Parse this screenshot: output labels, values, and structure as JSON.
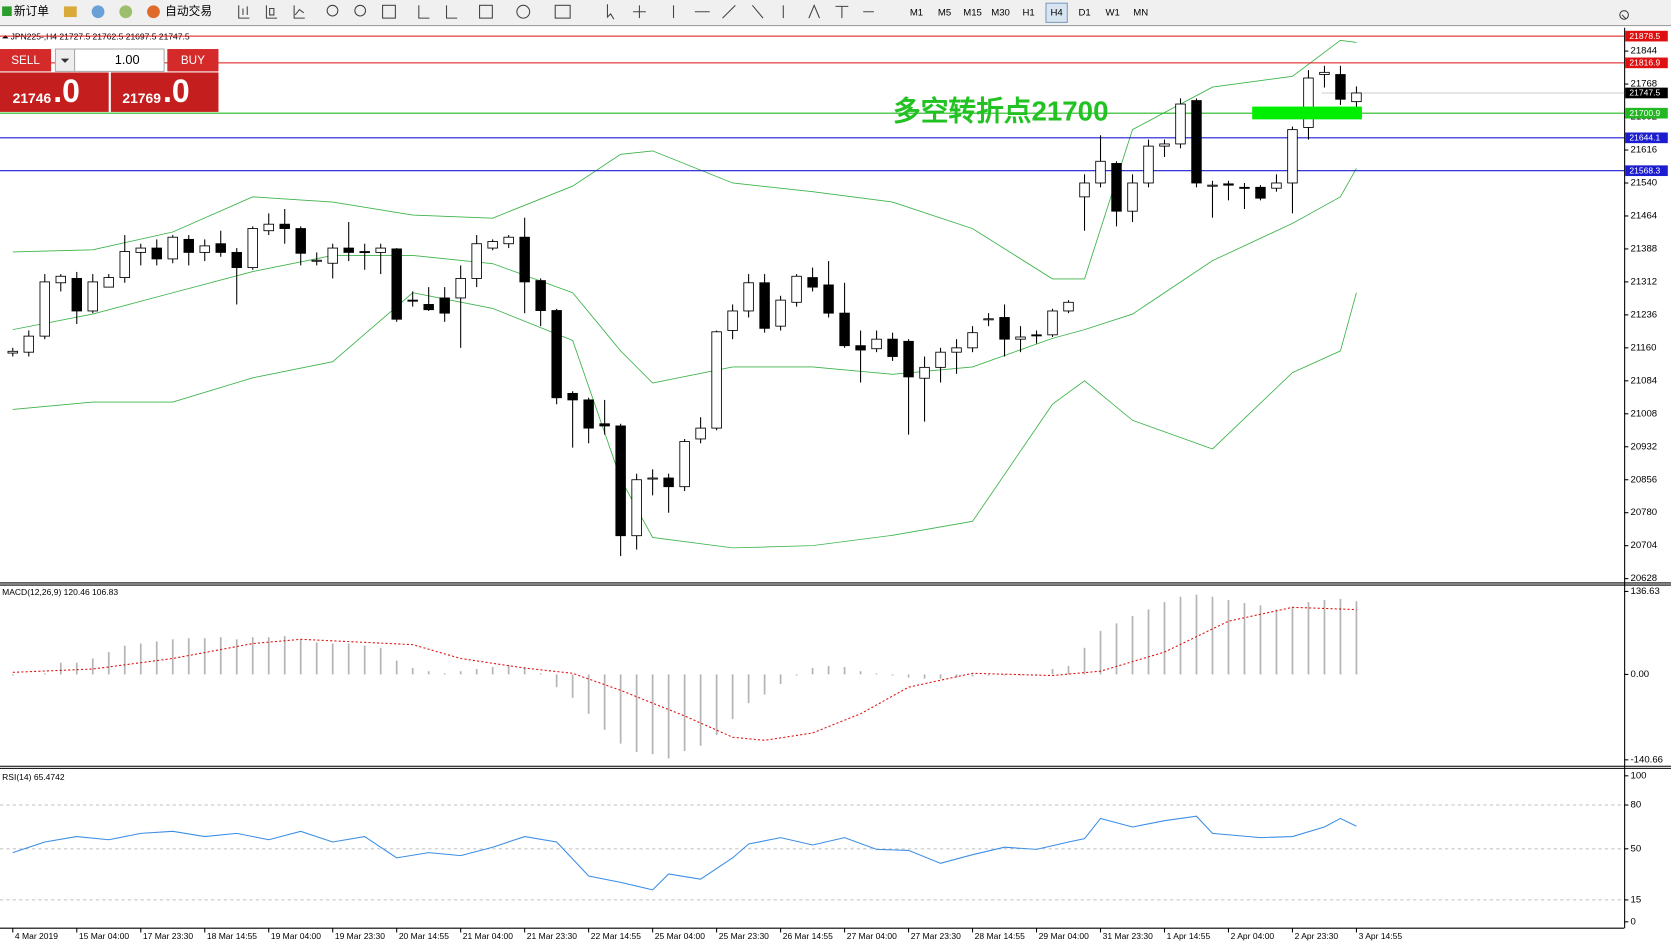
{
  "toolbar": {
    "new_order": "新订单",
    "auto_trading": "自动交易",
    "timeframes": [
      "M1",
      "M5",
      "M15",
      "M30",
      "H1",
      "H4",
      "D1",
      "W1",
      "MN"
    ],
    "active": "H4"
  },
  "trade_panel": {
    "sell": "SELL",
    "buy": "BUY",
    "lots": "1.00",
    "bid_main": "21746",
    "bid_frac": ".0",
    "ask_main": "21769",
    "ask_frac": ".0"
  },
  "chart_data": [
    {
      "type": "candlestick",
      "title": "JPN225-,H4  21727.5 21762.5 21697.5 21747.5",
      "annotation": "多空转折点21700",
      "categories": [
        "4 Mar 2019",
        null,
        null,
        null,
        "15 Mar 04:00",
        null,
        null,
        null,
        "17 Mar 23:30",
        null,
        null,
        null,
        "18 Mar 14:55",
        null,
        null,
        null,
        "19 Mar 04:00",
        null,
        null,
        null,
        "19 Mar 23:30",
        null,
        null,
        null,
        "20 Mar 14:55",
        null,
        null,
        null,
        "21 Mar 04:00",
        null,
        null,
        null,
        "21 Mar 23:30",
        null,
        null,
        null,
        "22 Mar 14:55",
        null,
        null,
        null,
        "25 Mar 04:00",
        null,
        null,
        null,
        "25 Mar 23:30",
        null,
        null,
        null,
        "26 Mar 14:55",
        null,
        null,
        null,
        "27 Mar 04:00",
        null,
        null,
        null,
        "27 Mar 23:30",
        null,
        null,
        null,
        "28 Mar 14:55",
        null,
        null,
        null,
        "29 Mar 04:00",
        null,
        null,
        null,
        "31 Mar 23:30",
        null,
        null,
        null,
        "1 Apr 14:55",
        null,
        null,
        null,
        "2 Apr 04:00",
        null,
        null,
        null,
        "2 Apr 23:30",
        null,
        null,
        null,
        "3 Apr 14:55"
      ],
      "open": [
        21148,
        21150,
        21187,
        21310,
        21320,
        21245,
        21300,
        21322,
        21380,
        21390,
        21365,
        21410,
        21380,
        21400,
        21380,
        21345,
        21430,
        21445,
        21435,
        21360,
        21355,
        21390,
        21382,
        21380,
        21388,
        21270,
        21260,
        21275,
        21275,
        21320,
        21390,
        21400,
        21415,
        21315,
        21246,
        21055,
        21040,
        20985,
        20980,
        20727,
        20858,
        20860,
        20840,
        20950,
        20975,
        21200,
        21245,
        21310,
        21210,
        21265,
        21322,
        21305,
        21240,
        21165,
        21158,
        21180,
        21175,
        21090,
        21115,
        21150,
        21160,
        21225,
        21230,
        21180,
        21190,
        21190,
        21245,
        21508,
        21540,
        21585,
        21475,
        21540,
        21625,
        21630,
        21730,
        21535,
        21538,
        21530,
        21530,
        21528,
        21540,
        21668,
        21790,
        21790,
        21727.5
      ],
      "high": [
        21160,
        21200,
        21330,
        21330,
        21335,
        21330,
        21330,
        21420,
        21400,
        21410,
        21420,
        21420,
        21410,
        21430,
        21390,
        21440,
        21470,
        21480,
        21440,
        21380,
        21400,
        21450,
        21400,
        21400,
        21390,
        21290,
        21300,
        21300,
        21350,
        21420,
        21410,
        21420,
        21460,
        21320,
        21250,
        21060,
        21045,
        21040,
        20985,
        20870,
        20880,
        20870,
        20950,
        21000,
        21200,
        21260,
        21330,
        21330,
        21280,
        21330,
        21345,
        21360,
        21310,
        21200,
        21200,
        21195,
        21180,
        21140,
        21160,
        21180,
        21210,
        21240,
        21260,
        21210,
        21200,
        21250,
        21270,
        21560,
        21650,
        21590,
        21560,
        21640,
        21640,
        21735,
        21735,
        21545,
        21545,
        21540,
        21535,
        21560,
        21670,
        21800,
        21810,
        21810,
        21762.5
      ],
      "low": [
        21140,
        21140,
        21180,
        21290,
        21215,
        21240,
        21300,
        21310,
        21350,
        21350,
        21355,
        21350,
        21360,
        21370,
        21260,
        21340,
        21420,
        21400,
        21350,
        21350,
        21320,
        21360,
        21340,
        21330,
        21220,
        21255,
        21245,
        21220,
        21160,
        21300,
        21385,
        21390,
        21240,
        21210,
        21030,
        20930,
        20940,
        20960,
        20680,
        20695,
        20820,
        20780,
        20830,
        20940,
        20970,
        21180,
        21230,
        21195,
        21200,
        21255,
        21290,
        21230,
        21160,
        21080,
        21150,
        21130,
        20960,
        20990,
        21080,
        21100,
        21150,
        21210,
        21140,
        21150,
        21170,
        21185,
        21240,
        21430,
        21530,
        21440,
        21450,
        21530,
        21600,
        21620,
        21530,
        21460,
        21500,
        21480,
        21500,
        21520,
        21470,
        21640,
        21760,
        21720,
        21697.5
      ],
      "close": [
        21152,
        21187,
        21312,
        21325,
        21245,
        21312,
        21322,
        21382,
        21390,
        21365,
        21415,
        21380,
        21395,
        21380,
        21345,
        21435,
        21445,
        21435,
        21378,
        21362,
        21390,
        21380,
        21380,
        21390,
        21226,
        21268,
        21248,
        21240,
        21320,
        21400,
        21405,
        21415,
        21312,
        21246,
        21045,
        21040,
        20975,
        20980,
        20727,
        20856,
        20860,
        20840,
        20944,
        20975,
        21197,
        21245,
        21310,
        21205,
        21270,
        21325,
        21300,
        21240,
        21165,
        21155,
        21180,
        21140,
        21093,
        21115,
        21150,
        21160,
        21195,
        21227,
        21180,
        21185,
        21188,
        21245,
        21265,
        21540,
        21590,
        21475,
        21540,
        21625,
        21630,
        21722,
        21540,
        21535,
        21535,
        21528,
        21505,
        21540,
        21663,
        21782,
        21795,
        21733,
        21747.5
      ],
      "up_color": "#ffffff",
      "down_color": "#000000",
      "bands": [
        {
          "color": "#3cb44b",
          "x": [
            0,
            5,
            10,
            15,
            20,
            25,
            30,
            35,
            38,
            40,
            45,
            50,
            55,
            60,
            65,
            67,
            70,
            75,
            80,
            83,
            84
          ],
          "values": [
            21381,
            21386,
            21427,
            21508,
            21496,
            21466,
            21459,
            21533,
            21606,
            21614,
            21540,
            21520,
            21496,
            21435,
            21319,
            21319,
            21663,
            21761,
            21786,
            21869,
            21864
          ]
        },
        {
          "color": "#3cb44b",
          "x": [
            0,
            5,
            10,
            15,
            20,
            25,
            30,
            35,
            38,
            40,
            45,
            50,
            55,
            60,
            65,
            67,
            70,
            75,
            80,
            83,
            84
          ],
          "values": [
            21202,
            21238,
            21287,
            21336,
            21373,
            21373,
            21354,
            21287,
            21153,
            21079,
            21116,
            21116,
            21099,
            21116,
            21182,
            21202,
            21238,
            21361,
            21447,
            21508,
            21574
          ]
        },
        {
          "color": "#3cb44b",
          "x": [
            0,
            5,
            10,
            15,
            20,
            25,
            30,
            35,
            38,
            40,
            45,
            50,
            55,
            60,
            65,
            67,
            70,
            75,
            80,
            83,
            84
          ],
          "values": [
            21018,
            21035,
            21035,
            21091,
            21128,
            21287,
            21251,
            21177,
            20858,
            20723,
            20699,
            20704,
            20728,
            20760,
            21030,
            21084,
            20993,
            20927,
            21103,
            21153,
            21287
          ]
        }
      ],
      "levels": [
        {
          "value": 21878.5,
          "color": "#e01010"
        },
        {
          "value": 21816.9,
          "color": "#e01010"
        },
        {
          "value": 21700.9,
          "color": "#22b822"
        },
        {
          "value": 21644.1,
          "color": "#1c1cd0"
        },
        {
          "value": 21568.3,
          "color": "#1c1cd0"
        }
      ],
      "last": 21747.5,
      "ylim": [
        20620.6,
        21893
      ],
      "yticks": [
        21844,
        21768,
        21692,
        21616,
        21540,
        21464,
        21388,
        21312,
        21236,
        21160,
        21084,
        21008,
        20932,
        20856,
        20780,
        20704,
        20628
      ]
    },
    {
      "type": "macd",
      "title": "MACD(12,26,9) 120.46 106.83",
      "color": "#b4b4b4",
      "values": [
        -2,
        0,
        2,
        19.3,
        19.3,
        26.3,
        36.8,
        47.3,
        50.8,
        54.3,
        57.8,
        59.6,
        59.6,
        61.3,
        57.8,
        61.3,
        61.3,
        63.1,
        57.8,
        52.6,
        50.8,
        50.8,
        47.3,
        43.8,
        22.8,
        10.5,
        5.3,
        1.8,
        5.3,
        8.8,
        12.3,
        15.8,
        12.3,
        1.8,
        -21,
        -38.5,
        -64.8,
        -91.1,
        -113.9,
        -127.9,
        -131.4,
        -138.4,
        -126.1,
        -117.4,
        -99.9,
        -73.6,
        -47.3,
        -33.3,
        -15.8,
        -1.8,
        10.5,
        14,
        12.3,
        5.3,
        1.8,
        -1.8,
        -5.3,
        -7,
        -7,
        -5.3,
        -3.5,
        -1.8,
        -1.8,
        -1.8,
        0.5,
        8.8,
        14,
        43.8,
        71.8,
        84.1,
        96.4,
        106.9,
        119.1,
        127.9,
        131.4,
        127.9,
        122.6,
        117.4,
        113.9,
        106.9,
        110.4,
        119.1,
        122.6,
        124.4,
        120.46
      ],
      "signal": {
        "color": "#e01010",
        "x": [
          0,
          5,
          10,
          15,
          18,
          25,
          28,
          32,
          35,
          38,
          42,
          45,
          47,
          50,
          53,
          56,
          60,
          65,
          68,
          72,
          76,
          80,
          84
        ],
        "values": [
          3.5,
          8.8,
          26.3,
          50.8,
          57.8,
          49.1,
          26.3,
          10.5,
          1.8,
          -26.3,
          -68.3,
          -103.4,
          -108.6,
          -96.4,
          -64.8,
          -21,
          1.8,
          -1.8,
          5.3,
          36.8,
          87.6,
          110.4,
          106.83
        ]
      },
      "ylim": [
        -140.66,
        136.63
      ],
      "yticks": [
        136.63,
        {
          "value": 0,
          "label": "0.00"
        },
        -140.66
      ]
    },
    {
      "type": "line",
      "title": "RSI(14) 65.4742",
      "color": "#3c8ee6",
      "x": [
        0,
        2,
        4,
        6,
        8,
        10,
        12,
        14,
        16,
        18,
        20,
        22,
        24,
        26,
        28,
        30,
        32,
        34,
        36,
        38,
        40,
        41,
        43,
        45,
        46,
        48,
        50,
        52,
        54,
        56,
        58,
        60,
        62,
        64,
        66,
        67,
        68,
        70,
        72,
        74,
        75,
        78,
        80,
        82,
        83,
        84
      ],
      "values": [
        47.4,
        54.7,
        58.4,
        56.2,
        60.6,
        62,
        58.4,
        60.6,
        56.2,
        62,
        54.7,
        58.4,
        43.8,
        47.4,
        45.3,
        51.1,
        58.4,
        54.7,
        31.4,
        27,
        21.9,
        32.8,
        29.2,
        43.8,
        53.3,
        57.7,
        52.6,
        57.7,
        49.6,
        48.9,
        40.1,
        46,
        51.1,
        49.6,
        54.7,
        56.9,
        70.8,
        65,
        69.3,
        72.3,
        60.6,
        57.7,
        58.4,
        65,
        70.8,
        65.4742
      ],
      "ylim": [
        0,
        100
      ],
      "yticks": [
        100,
        80,
        50,
        15,
        0
      ],
      "grid": true
    }
  ]
}
